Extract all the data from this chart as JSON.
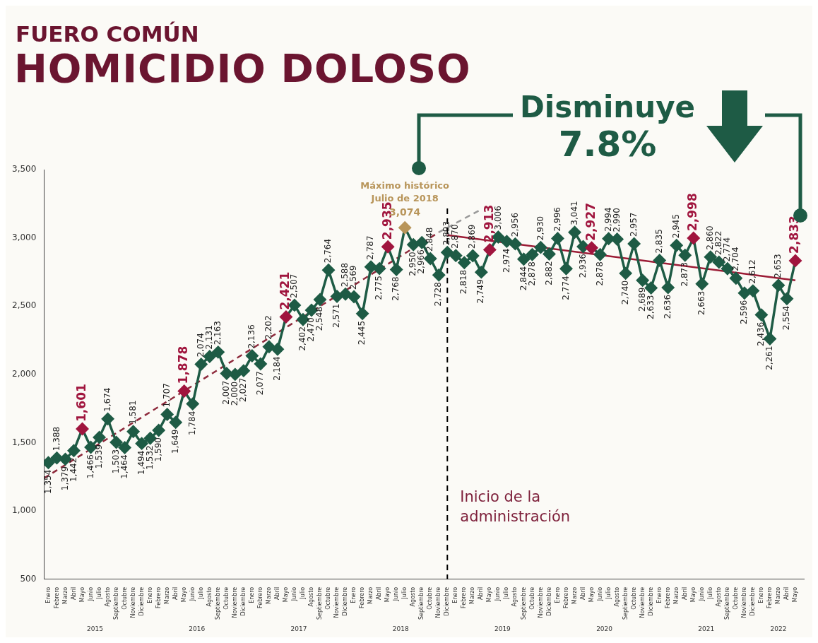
{
  "chart_data": {
    "type": "line",
    "subtitle": "FUERO COMÚN",
    "title": "HOMICIDIO DOLOSO",
    "x": [
      "2015-01",
      "2015-02",
      "2015-03",
      "2015-04",
      "2015-05",
      "2015-06",
      "2015-07",
      "2015-08",
      "2015-09",
      "2015-10",
      "2015-11",
      "2015-12",
      "2016-01",
      "2016-02",
      "2016-03",
      "2016-04",
      "2016-05",
      "2016-06",
      "2016-07",
      "2016-08",
      "2016-09",
      "2016-10",
      "2016-11",
      "2016-12",
      "2017-01",
      "2017-02",
      "2017-03",
      "2017-04",
      "2017-05",
      "2017-06",
      "2017-07",
      "2017-08",
      "2017-09",
      "2017-10",
      "2017-11",
      "2017-12",
      "2018-01",
      "2018-02",
      "2018-03",
      "2018-04",
      "2018-05",
      "2018-06",
      "2018-07",
      "2018-08",
      "2018-09",
      "2018-10",
      "2018-11",
      "2018-12",
      "2019-01",
      "2019-02",
      "2019-03",
      "2019-04",
      "2019-05",
      "2019-06",
      "2019-07",
      "2019-08",
      "2019-09",
      "2019-10",
      "2019-11",
      "2019-12",
      "2020-01",
      "2020-02",
      "2020-03",
      "2020-04",
      "2020-05",
      "2020-06",
      "2020-07",
      "2020-08",
      "2020-09",
      "2020-10",
      "2020-11",
      "2020-12",
      "2021-01",
      "2021-02",
      "2021-03",
      "2021-04",
      "2021-05",
      "2021-06",
      "2021-07",
      "2021-08",
      "2021-09",
      "2021-10",
      "2021-11",
      "2021-12",
      "2022-01",
      "2022-02",
      "2022-03",
      "2022-04",
      "2022-05"
    ],
    "xlim": [
      "2014-12-16",
      "2022-06-01"
    ],
    "xticks": [
      {
        "value": "2015-01",
        "label": "Enero"
      },
      {
        "value": "2015-02",
        "label": "Febrero"
      },
      {
        "value": "2015-03",
        "label": "Marzo"
      },
      {
        "value": "2015-04",
        "label": "Abril"
      },
      {
        "value": "2015-05",
        "label": "Mayo"
      },
      {
        "value": "2015-06",
        "label": "Junio"
      },
      {
        "value": "2015-07",
        "label": "Julio"
      },
      {
        "value": "2015-08",
        "label": "Agosto"
      },
      {
        "value": "2015-09",
        "label": "Septiembre"
      },
      {
        "value": "2015-10",
        "label": "Octubre"
      },
      {
        "value": "2015-11",
        "label": "Noviembre"
      },
      {
        "value": "2015-12",
        "label": "Diciembre"
      },
      {
        "value": "2016-01",
        "label": "Enero"
      },
      {
        "value": "2016-02",
        "label": "Febrero"
      },
      {
        "value": "2016-03",
        "label": "Marzo"
      },
      {
        "value": "2016-04",
        "label": "Abril"
      },
      {
        "value": "2016-05",
        "label": "Mayo"
      },
      {
        "value": "2016-06",
        "label": "Junio"
      },
      {
        "value": "2016-07",
        "label": "Julio"
      },
      {
        "value": "2016-08",
        "label": "Agosto"
      },
      {
        "value": "2016-09",
        "label": "Septiembre"
      },
      {
        "value": "2016-10",
        "label": "Octubre"
      },
      {
        "value": "2016-11",
        "label": "Noviembre"
      },
      {
        "value": "2016-12",
        "label": "Diciembre"
      },
      {
        "value": "2017-01",
        "label": "Enero"
      },
      {
        "value": "2017-02",
        "label": "Febrero"
      },
      {
        "value": "2017-03",
        "label": "Marzo"
      },
      {
        "value": "2017-04",
        "label": "Abril"
      },
      {
        "value": "2017-05",
        "label": "Mayo"
      },
      {
        "value": "2017-06",
        "label": "Junio"
      },
      {
        "value": "2017-07",
        "label": "Julio"
      },
      {
        "value": "2017-08",
        "label": "Agosto"
      },
      {
        "value": "2017-09",
        "label": "Septiembre"
      },
      {
        "value": "2017-10",
        "label": "Octubre"
      },
      {
        "value": "2017-11",
        "label": "Noviembre"
      },
      {
        "value": "2017-12",
        "label": "Diciembre"
      },
      {
        "value": "2018-01",
        "label": "Enero"
      },
      {
        "value": "2018-02",
        "label": "Febrero"
      },
      {
        "value": "2018-03",
        "label": "Marzo"
      },
      {
        "value": "2018-04",
        "label": "Abril"
      },
      {
        "value": "2018-05",
        "label": "Mayo"
      },
      {
        "value": "2018-06",
        "label": "Junio"
      },
      {
        "value": "2018-07",
        "label": "Julio"
      },
      {
        "value": "2018-08",
        "label": "Agosto"
      },
      {
        "value": "2018-09",
        "label": "Septiembre"
      },
      {
        "value": "2018-10",
        "label": "Octubre"
      },
      {
        "value": "2018-11",
        "label": "Noviembre"
      },
      {
        "value": "2018-12",
        "label": "Diciembre"
      },
      {
        "value": "2019-01",
        "label": "Enero"
      },
      {
        "value": "2019-02",
        "label": "Febrero"
      },
      {
        "value": "2019-03",
        "label": "Marzo"
      },
      {
        "value": "2019-04",
        "label": "Abril"
      },
      {
        "value": "2019-05",
        "label": "Mayo"
      },
      {
        "value": "2019-06",
        "label": "Junio"
      },
      {
        "value": "2019-07",
        "label": "Julio"
      },
      {
        "value": "2019-08",
        "label": "Agosto"
      },
      {
        "value": "2019-09",
        "label": "Septiembre"
      },
      {
        "value": "2019-10",
        "label": "Octubre"
      },
      {
        "value": "2019-11",
        "label": "Noviembre"
      },
      {
        "value": "2019-12",
        "label": "Diciembre"
      },
      {
        "value": "2020-01",
        "label": "Enero"
      },
      {
        "value": "2020-02",
        "label": "Febrero"
      },
      {
        "value": "2020-03",
        "label": "Marzo"
      },
      {
        "value": "2020-04",
        "label": "Abril"
      },
      {
        "value": "2020-05",
        "label": "Mayo"
      },
      {
        "value": "2020-06",
        "label": "Junio"
      },
      {
        "value": "2020-07",
        "label": "Julio"
      },
      {
        "value": "2020-08",
        "label": "Agosto"
      },
      {
        "value": "2020-09",
        "label": "Septiembre"
      },
      {
        "value": "2020-10",
        "label": "Octubre"
      },
      {
        "value": "2020-11",
        "label": "Noviembre"
      },
      {
        "value": "2020-12",
        "label": "Diciembre"
      },
      {
        "value": "2021-01",
        "label": "Enero"
      },
      {
        "value": "2021-02",
        "label": "Febrero"
      },
      {
        "value": "2021-03",
        "label": "Marzo"
      },
      {
        "value": "2021-04",
        "label": "Abril"
      },
      {
        "value": "2021-05",
        "label": "Mayo"
      },
      {
        "value": "2021-06",
        "label": "Junio"
      },
      {
        "value": "2021-07",
        "label": "Julio"
      },
      {
        "value": "2021-08",
        "label": "Agosto"
      },
      {
        "value": "2021-09",
        "label": "Septiembre"
      },
      {
        "value": "2021-10",
        "label": "Octubre"
      },
      {
        "value": "2021-11",
        "label": "Noviembre"
      },
      {
        "value": "2021-12",
        "label": "Diciembre"
      },
      {
        "value": "2022-01",
        "label": "Enero"
      },
      {
        "value": "2022-02",
        "label": "Febrero"
      },
      {
        "value": "2022-03",
        "label": "Marzo"
      },
      {
        "value": "2022-04",
        "label": "Abril"
      },
      {
        "value": "2022-05",
        "label": "Mayo"
      }
    ],
    "ylim": [
      500,
      3500
    ],
    "yticks": [
      500,
      {
        "value": 1000,
        "label": "1,000"
      },
      {
        "value": 1500,
        "label": "1,500"
      },
      {
        "value": 2000,
        "label": "2,000"
      },
      {
        "value": 2500,
        "label": "2,500"
      },
      {
        "value": 3000,
        "label": "3,000"
      },
      {
        "value": 3500,
        "label": "3,500"
      }
    ],
    "grid": false,
    "legend": false,
    "marker": "diamond",
    "series": [
      {
        "color": "#1e5b45",
        "colors": [
          "#1e5b45",
          "#1e5b45",
          "#1e5b45",
          "#1e5b45",
          "#a0153e",
          "#1e5b45",
          "#1e5b45",
          "#1e5b45",
          "#1e5b45",
          "#1e5b45",
          "#1e5b45",
          "#1e5b45",
          "#1e5b45",
          "#1e5b45",
          "#1e5b45",
          "#1e5b45",
          "#a0153e",
          "#1e5b45",
          "#1e5b45",
          "#1e5b45",
          "#1e5b45",
          "#1e5b45",
          "#1e5b45",
          "#1e5b45",
          "#1e5b45",
          "#1e5b45",
          "#1e5b45",
          "#1e5b45",
          "#a0153e",
          "#1e5b45",
          "#1e5b45",
          "#1e5b45",
          "#1e5b45",
          "#1e5b45",
          "#1e5b45",
          "#1e5b45",
          "#1e5b45",
          "#1e5b45",
          "#1e5b45",
          "#1e5b45",
          "#a0153e",
          "#1e5b45",
          "#b8955a",
          "#1e5b45",
          "#1e5b45",
          "#1e5b45",
          "#1e5b45",
          "#1e5b45",
          "#1e5b45",
          "#1e5b45",
          "#1e5b45",
          "#1e5b45",
          "#a0153e",
          "#1e5b45",
          "#1e5b45",
          "#1e5b45",
          "#1e5b45",
          "#1e5b45",
          "#1e5b45",
          "#1e5b45",
          "#1e5b45",
          "#1e5b45",
          "#1e5b45",
          "#1e5b45",
          "#a0153e",
          "#1e5b45",
          "#1e5b45",
          "#1e5b45",
          "#1e5b45",
          "#1e5b45",
          "#1e5b45",
          "#1e5b45",
          "#1e5b45",
          "#1e5b45",
          "#1e5b45",
          "#1e5b45",
          "#a0153e",
          "#1e5b45",
          "#1e5b45",
          "#1e5b45",
          "#1e5b45",
          "#1e5b45",
          "#1e5b45",
          "#1e5b45",
          "#1e5b45",
          "#1e5b45",
          "#1e5b45",
          "#1e5b45",
          "#a0153e"
        ],
        "values": [
          1354,
          1388,
          1379,
          1442,
          1601,
          1466,
          1539,
          1674,
          1503,
          1464,
          1581,
          1494,
          1532,
          1590,
          1707,
          1649,
          1878,
          1784,
          2074,
          2131,
          2163,
          2007,
          2000,
          2027,
          2136,
          2077,
          2202,
          2184,
          2421,
          2507,
          2402,
          2470,
          2548,
          2764,
          2571,
          2588,
          2569,
          2445,
          2787,
          2775,
          2935,
          2768,
          3074,
          2950,
          2966,
          2848,
          2728,
          2893,
          2870,
          2818,
          2869,
          2749,
          2913,
          3006,
          2974,
          2956,
          2844,
          2878,
          2930,
          2882,
          2996,
          2774,
          3041,
          2936,
          2927,
          2878,
          2994,
          2990,
          2740,
          2957,
          2689,
          2633,
          2835,
          2636,
          2945,
          2873,
          2998,
          2663,
          2860,
          2822,
          2774,
          2704,
          2596,
          2612,
          2436,
          2261,
          2653,
          2554,
          2833
        ],
        "value_labels": [
          "1,354",
          "1,388",
          "1,379",
          "1,442",
          "1,601",
          "1,466",
          "1,539",
          "1,674",
          "1,503",
          "1,464",
          "1,581",
          "1,494",
          "1,532",
          "1,590",
          "1,707",
          "1,649",
          "1,878",
          "1,784",
          "2,074",
          "2,131",
          "2,163",
          "2,007",
          "2,000",
          "2,027",
          "2,136",
          "2,077",
          "2,202",
          "2,184",
          "2,421",
          "2,507",
          "2,402",
          "2,470",
          "2,548",
          "2,764",
          "2,571",
          "2,588",
          "2,569",
          "2,445",
          "2,787",
          "2,775",
          "2,935",
          "2,768",
          "3,074",
          "2,950",
          "2,966",
          "2,848",
          "2,728",
          "2,893",
          "2,870",
          "2,818",
          "2,869",
          "2,749",
          "2,913",
          "3,006",
          "2,974",
          "2,956",
          "2,844",
          "2,878",
          "2,930",
          "2,882",
          "2,996",
          "2,774",
          "3,041",
          "2,936",
          "2,927",
          "2,878",
          "2,994",
          "2,990",
          "2,740",
          "2,957",
          "2,689",
          "2,633",
          "2,835",
          "2,636",
          "2,945",
          "2,873",
          "2,998",
          "2,663",
          "2,860",
          "2,822",
          "2,774",
          "2,704",
          "2,596",
          "2,612",
          "2,436",
          "2,261",
          "2,653",
          "2,554",
          "2,833"
        ]
      },
      {
        "type": "line",
        "x": [
          "2014-12-16",
          "2018-11"
        ],
        "values": [
          1240,
          3041
        ],
        "color": "#8e2a3c",
        "line_style": "dashed",
        "marker": "none"
      },
      {
        "type": "line",
        "x": [
          "2018-11",
          "2019-04"
        ],
        "values": [
          3041,
          3209
        ],
        "color": "#999999",
        "line_style": "dashed",
        "marker": "none"
      },
      {
        "type": "line",
        "x": [
          "2018-12",
          "2022-05"
        ],
        "values": [
          3020,
          2689
        ],
        "color": "#9b1b35",
        "line_style": "solid",
        "marker": "none"
      }
    ],
    "ref_lines": [
      {
        "axis": "x",
        "value": "2018-12",
        "label": "Inicio de la administración",
        "color": "#000000",
        "line_style": "dashed"
      }
    ],
    "annotations": [
      "Máximo histórico Julio de 2018",
      "2015",
      "2016",
      "2017",
      "2018",
      "2019",
      "2020",
      "2021",
      "2022",
      "Disminuye",
      "7.8%"
    ]
  }
}
